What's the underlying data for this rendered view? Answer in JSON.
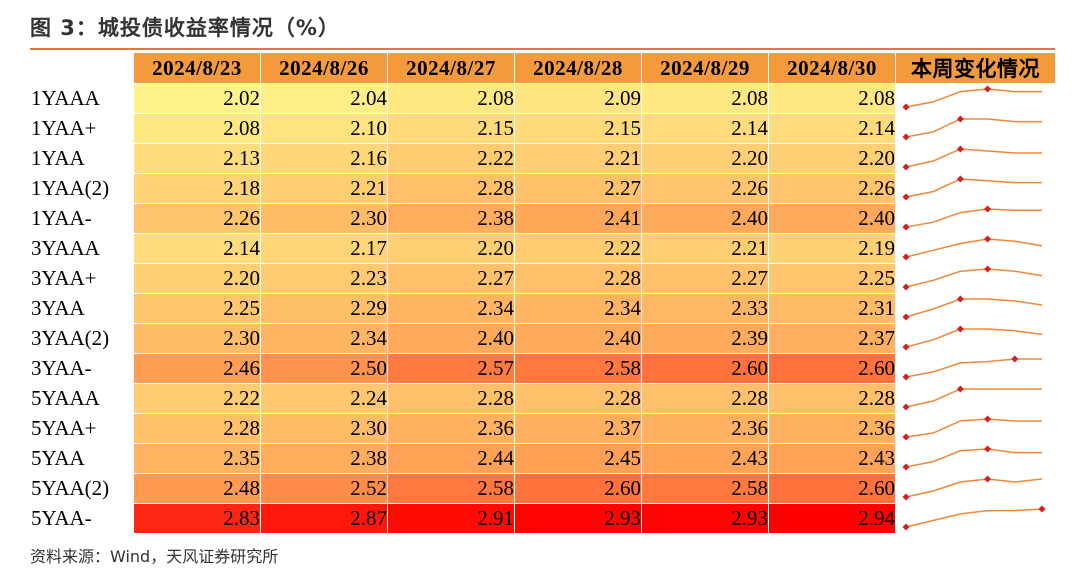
{
  "title": "图 3：城投债收益率情况（%）",
  "source": "资料来源：Wind，天风证券研究所",
  "table": {
    "dates": [
      "2024/8/23",
      "2024/8/26",
      "2024/8/27",
      "2024/8/28",
      "2024/8/29",
      "2024/8/30"
    ],
    "trend_header": "本周变化情况",
    "rows": [
      {
        "label": "1YAAA",
        "values": [
          2.02,
          2.04,
          2.08,
          2.09,
          2.08,
          2.08
        ]
      },
      {
        "label": "1YAA+",
        "values": [
          2.08,
          2.1,
          2.15,
          2.15,
          2.14,
          2.14
        ]
      },
      {
        "label": "1YAA",
        "values": [
          2.13,
          2.16,
          2.22,
          2.21,
          2.2,
          2.2
        ]
      },
      {
        "label": "1YAA(2)",
        "values": [
          2.18,
          2.21,
          2.28,
          2.27,
          2.26,
          2.26
        ]
      },
      {
        "label": "1YAA-",
        "values": [
          2.26,
          2.3,
          2.38,
          2.41,
          2.4,
          2.4
        ]
      },
      {
        "label": "3YAAA",
        "values": [
          2.14,
          2.17,
          2.2,
          2.22,
          2.21,
          2.19
        ]
      },
      {
        "label": "3YAA+",
        "values": [
          2.2,
          2.23,
          2.27,
          2.28,
          2.27,
          2.25
        ]
      },
      {
        "label": "3YAA",
        "values": [
          2.25,
          2.29,
          2.34,
          2.34,
          2.33,
          2.31
        ]
      },
      {
        "label": "3YAA(2)",
        "values": [
          2.3,
          2.34,
          2.4,
          2.4,
          2.39,
          2.37
        ]
      },
      {
        "label": "3YAA-",
        "values": [
          2.46,
          2.5,
          2.57,
          2.58,
          2.6,
          2.6
        ]
      },
      {
        "label": "5YAAA",
        "values": [
          2.22,
          2.24,
          2.28,
          2.28,
          2.28,
          2.28
        ]
      },
      {
        "label": "5YAA+",
        "values": [
          2.28,
          2.3,
          2.36,
          2.37,
          2.36,
          2.36
        ]
      },
      {
        "label": "5YAA",
        "values": [
          2.35,
          2.38,
          2.44,
          2.45,
          2.43,
          2.43
        ]
      },
      {
        "label": "5YAA(2)",
        "values": [
          2.48,
          2.52,
          2.58,
          2.6,
          2.58,
          2.6
        ]
      },
      {
        "label": "5YAA-",
        "values": [
          2.83,
          2.87,
          2.91,
          2.93,
          2.93,
          2.94
        ]
      }
    ]
  },
  "colors": {
    "header": "#f39b3c",
    "title_rule": "#e07a3c",
    "spark_line": "#f0883a",
    "spark_marker": "#d42020",
    "scale_low": "#fff28a",
    "scale_mid": "#ff9a50",
    "scale_high": "#ff0000"
  }
}
